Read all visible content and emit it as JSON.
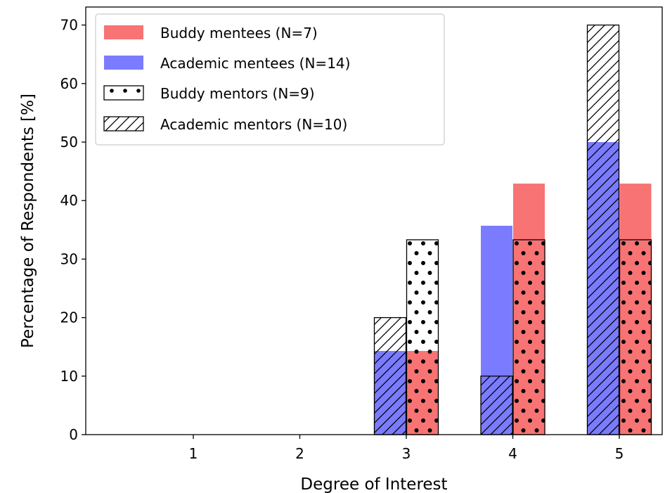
{
  "chart_data": {
    "type": "bar",
    "categories": [
      "1",
      "2",
      "3",
      "4",
      "5"
    ],
    "xlabel": "Degree of Interest",
    "ylabel": "Percentage of Respondents [%]",
    "ylim": [
      0,
      74
    ],
    "yticks": [
      "0",
      "10",
      "20",
      "30",
      "40",
      "50",
      "60",
      "70"
    ],
    "grid": false,
    "legend_position": "top-left",
    "series": [
      {
        "name": "Buddy mentees (N=7)",
        "group": "buddy",
        "style": "fill",
        "color": "#f87373",
        "values": [
          0,
          0,
          14.3,
          42.9,
          42.9
        ]
      },
      {
        "name": "Academic mentees (N=14)",
        "group": "academic",
        "style": "fill",
        "color": "#7b7bff",
        "values": [
          0,
          0,
          14.3,
          35.7,
          50.0
        ]
      },
      {
        "name": "Buddy mentors (N=9)",
        "group": "buddy",
        "style": "dots",
        "color": "#000000",
        "values": [
          0,
          0,
          33.3,
          33.3,
          33.3
        ]
      },
      {
        "name": "Academic mentors (N=10)",
        "group": "academic",
        "style": "hatch",
        "color": "#000000",
        "values": [
          0,
          0,
          20.0,
          10.0,
          70.0
        ]
      }
    ]
  }
}
